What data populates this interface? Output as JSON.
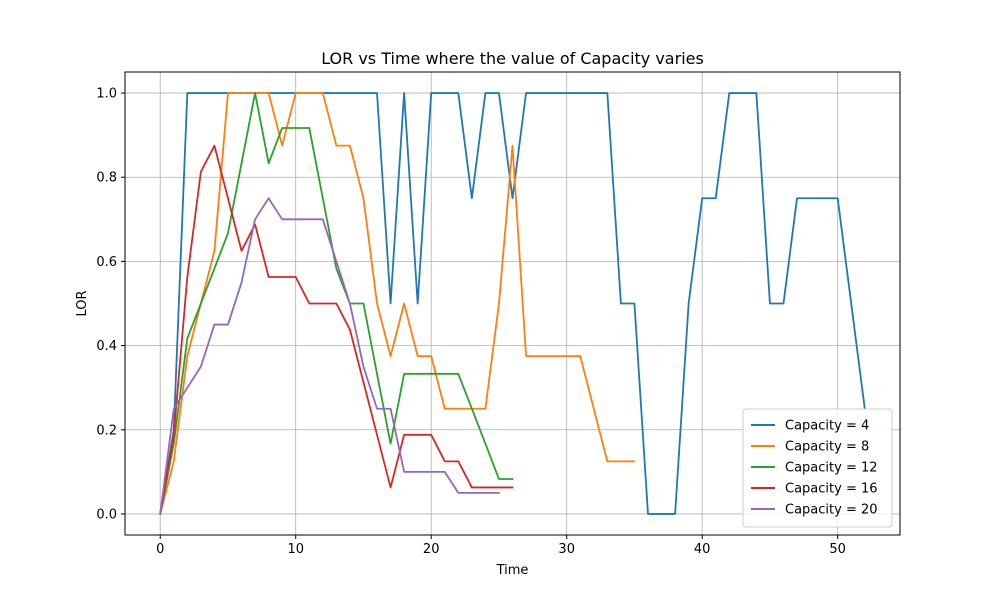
{
  "chart_data": {
    "type": "line",
    "title": "LOR vs Time where the value of Capacity varies",
    "xlabel": "Time",
    "ylabel": "LOR",
    "xlim": [
      -2.6,
      54.6
    ],
    "ylim": [
      -0.05,
      1.05
    ],
    "xticks": [
      0,
      10,
      20,
      30,
      40,
      50
    ],
    "yticks": [
      0.0,
      0.2,
      0.4,
      0.6,
      0.8,
      1.0
    ],
    "xtick_labels": [
      "0",
      "10",
      "20",
      "30",
      "40",
      "50"
    ],
    "ytick_labels": [
      "0.0",
      "0.2",
      "0.4",
      "0.6",
      "0.8",
      "1.0"
    ],
    "grid": true,
    "legend_position": "lower-right",
    "series": [
      {
        "name": "Capacity = 4",
        "color": "#1f77b4",
        "x": [
          0,
          1,
          2,
          3,
          4,
          5,
          6,
          7,
          8,
          9,
          10,
          11,
          12,
          13,
          14,
          15,
          16,
          17,
          18,
          19,
          20,
          21,
          22,
          23,
          24,
          25,
          26,
          27,
          28,
          29,
          30,
          31,
          32,
          33,
          34,
          35,
          36,
          37,
          38,
          39,
          40,
          41,
          42,
          43,
          44,
          45,
          46,
          47,
          48,
          49,
          50,
          51,
          52
        ],
        "y": [
          0,
          0.2,
          1,
          1,
          1,
          1,
          1,
          1,
          1,
          1,
          1,
          1,
          1,
          1,
          1,
          1,
          1,
          0.5,
          1,
          0.5,
          1,
          1,
          1,
          0.75,
          1,
          1,
          0.75,
          1,
          1,
          1,
          1,
          1,
          1,
          1,
          0.5,
          0.5,
          0,
          0,
          0,
          0.5,
          0.75,
          0.75,
          1,
          1,
          1,
          0.5,
          0.5,
          0.75,
          0.75,
          0.75,
          0.75,
          0.5,
          0.25
        ]
      },
      {
        "name": "Capacity = 8",
        "color": "#ff7f0e",
        "x": [
          0,
          1,
          2,
          3,
          4,
          5,
          6,
          7,
          8,
          9,
          10,
          11,
          12,
          13,
          14,
          15,
          16,
          17,
          18,
          19,
          20,
          21,
          22,
          23,
          24,
          25,
          26,
          27,
          28,
          29,
          30,
          31,
          32,
          33,
          34,
          35
        ],
        "y": [
          0,
          0.125,
          0.375,
          0.5,
          0.625,
          1,
          1,
          1,
          1,
          0.875,
          1,
          1,
          1,
          0.875,
          0.875,
          0.75,
          0.5,
          0.375,
          0.5,
          0.375,
          0.375,
          0.25,
          0.25,
          0.25,
          0.25,
          0.5,
          0.875,
          0.375,
          0.375,
          0.375,
          0.375,
          0.375,
          0.25,
          0.125,
          0.125,
          0.125
        ]
      },
      {
        "name": "Capacity = 12",
        "color": "#2ca02c",
        "x": [
          0,
          1,
          2,
          3,
          4,
          5,
          6,
          7,
          8,
          9,
          10,
          11,
          12,
          13,
          14,
          15,
          16,
          17,
          18,
          19,
          20,
          21,
          22,
          23,
          24,
          25,
          26
        ],
        "y": [
          0,
          0.167,
          0.417,
          0.5,
          0.583,
          0.667,
          0.833,
          1,
          0.833,
          0.917,
          0.917,
          0.917,
          0.75,
          0.583,
          0.5,
          0.5,
          0.333,
          0.167,
          0.333,
          0.333,
          0.333,
          0.333,
          0.333,
          0.25,
          0.167,
          0.083,
          0.083
        ]
      },
      {
        "name": "Capacity = 16",
        "color": "#d62728",
        "x": [
          0,
          1,
          2,
          3,
          4,
          5,
          6,
          7,
          8,
          9,
          10,
          11,
          12,
          13,
          14,
          15,
          16,
          17,
          18,
          19,
          20,
          21,
          22,
          23,
          24,
          25,
          26
        ],
        "y": [
          0,
          0.188,
          0.563,
          0.813,
          0.875,
          0.75,
          0.625,
          0.688,
          0.563,
          0.563,
          0.563,
          0.5,
          0.5,
          0.5,
          0.438,
          0.313,
          0.188,
          0.063,
          0.188,
          0.188,
          0.188,
          0.125,
          0.125,
          0.063,
          0.063,
          0.063,
          0.063
        ]
      },
      {
        "name": "Capacity = 20",
        "color": "#9467bd",
        "x": [
          0,
          1,
          2,
          3,
          4,
          5,
          6,
          7,
          8,
          9,
          10,
          11,
          12,
          13,
          14,
          15,
          16,
          17,
          18,
          19,
          20,
          21,
          22,
          23,
          24,
          25
        ],
        "y": [
          0,
          0.25,
          0.3,
          0.35,
          0.45,
          0.45,
          0.55,
          0.7,
          0.75,
          0.7,
          0.7,
          0.7,
          0.7,
          0.6,
          0.5,
          0.35,
          0.25,
          0.25,
          0.1,
          0.1,
          0.1,
          0.1,
          0.05,
          0.05,
          0.05,
          0.05
        ]
      }
    ]
  }
}
